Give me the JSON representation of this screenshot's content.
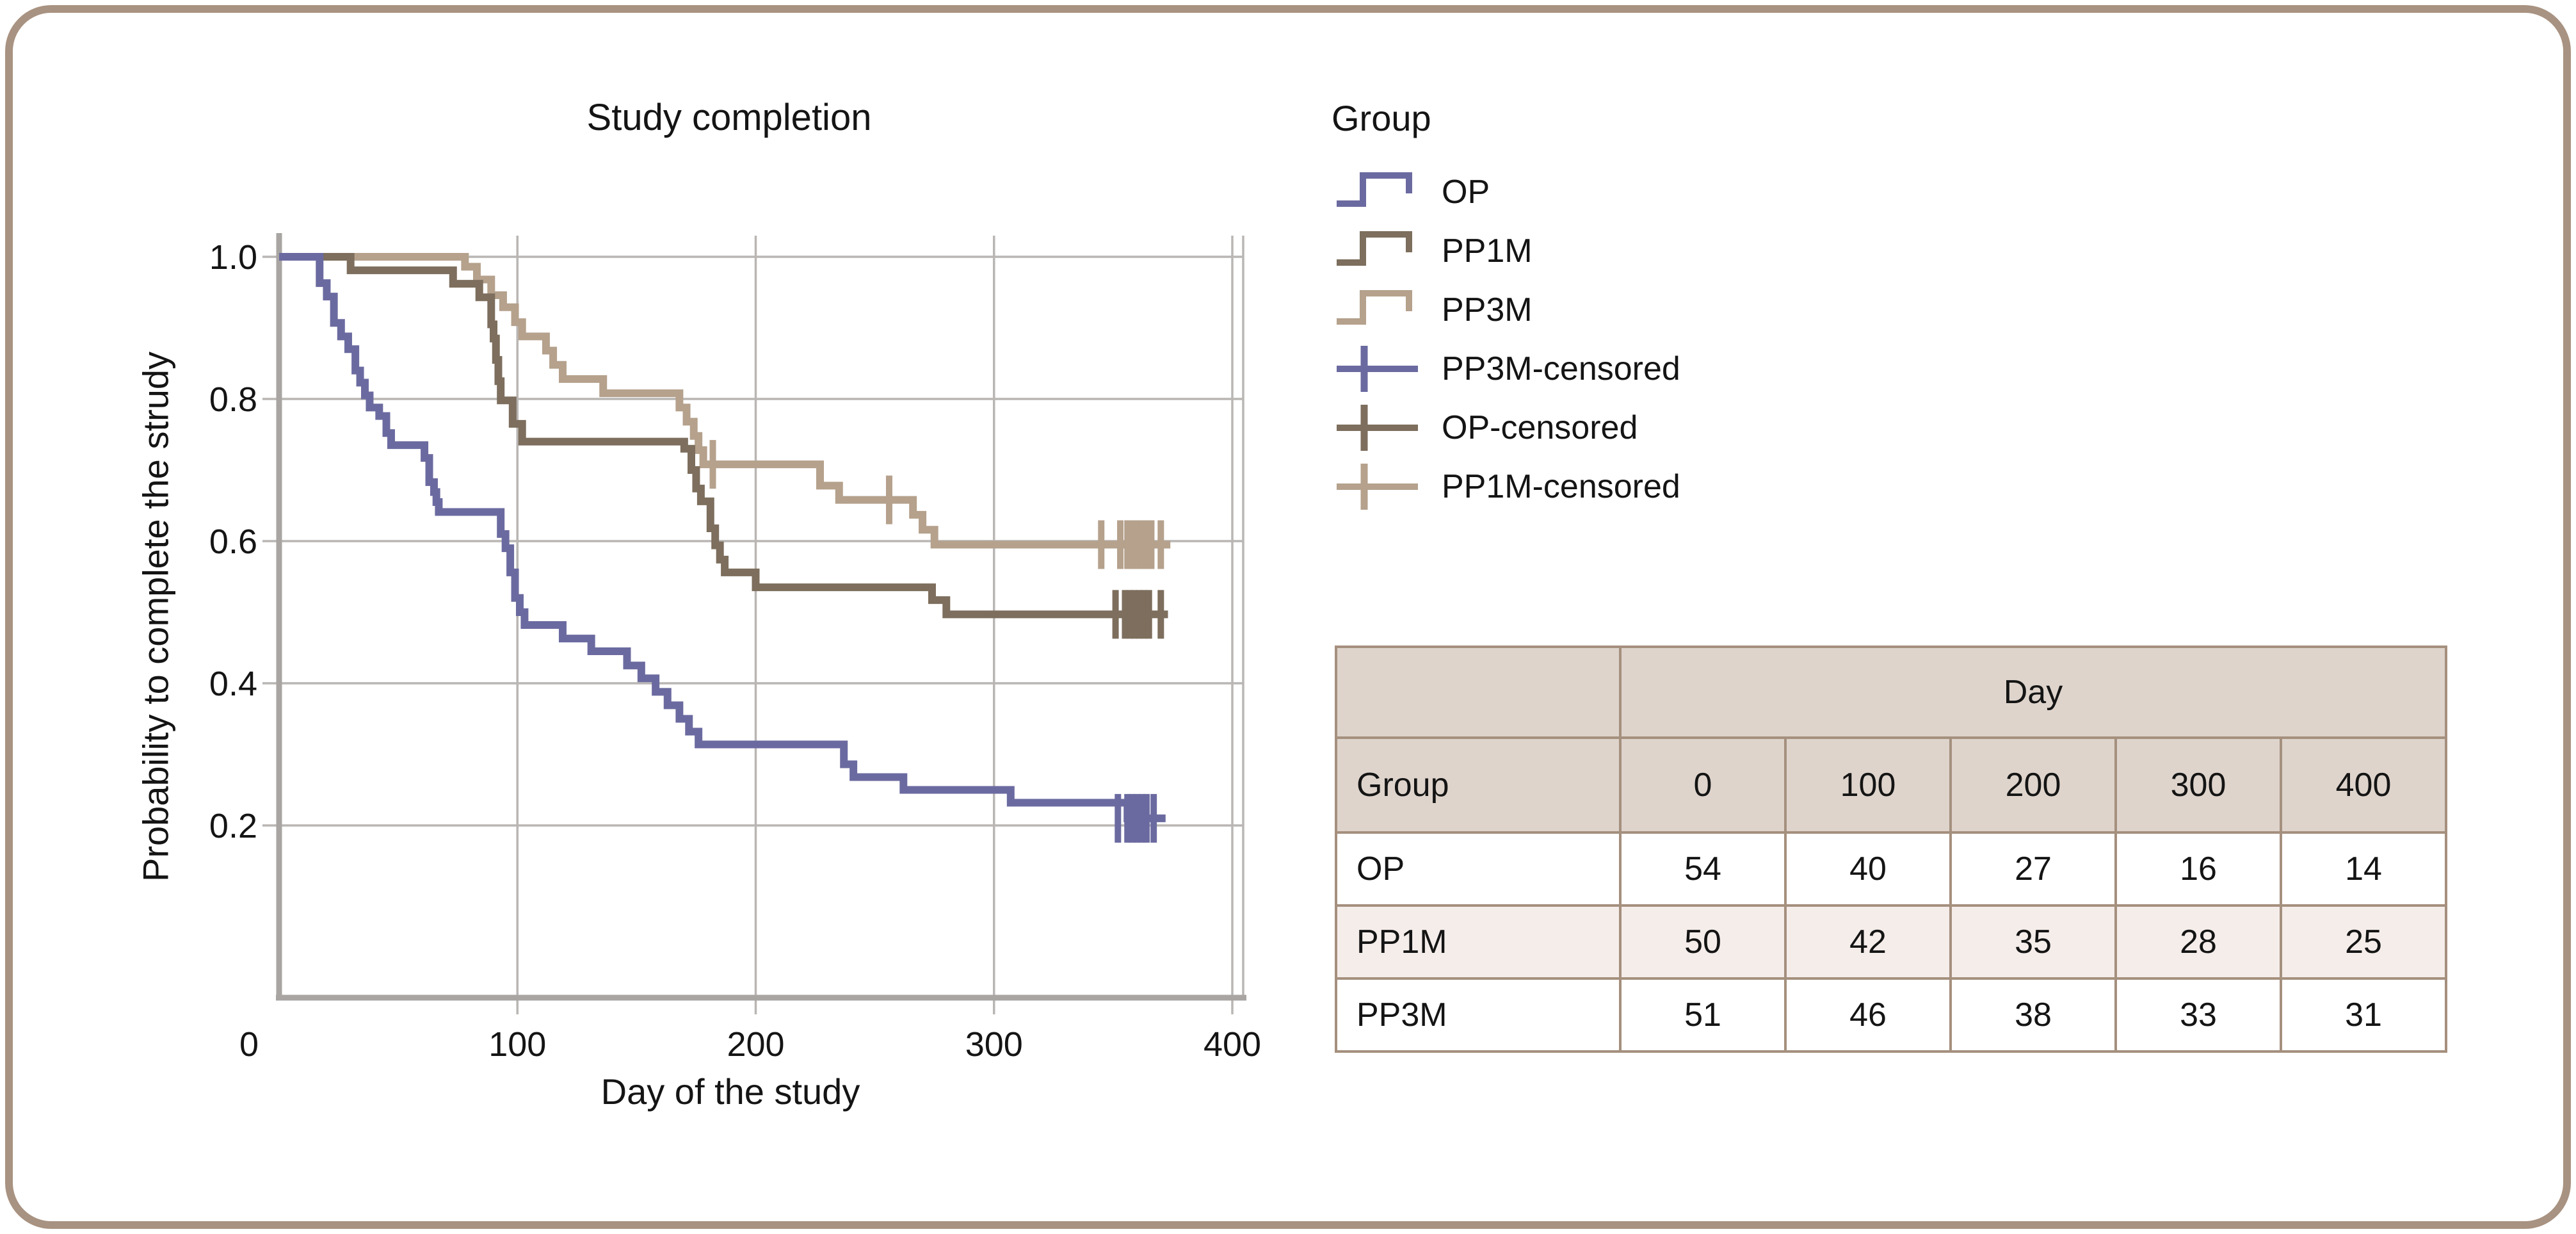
{
  "window": {
    "background": "#ffffff",
    "frame_border_color": "#a89281"
  },
  "chart": {
    "title": "Study completion",
    "x_label": "Day of the study",
    "y_label": "Probability to complete the strudy",
    "x_tick_labels": [
      "0",
      "100",
      "200",
      "300",
      "400"
    ],
    "y_tick_labels": [
      "1.0",
      "0.8",
      "0.6",
      "0.4",
      "0.2"
    ],
    "grid_color": "#b9b6b4",
    "axis_color": "#a8a5a2",
    "text_color": "#141414"
  },
  "legend": {
    "title": "Group",
    "items": [
      {
        "label": "OP",
        "marker": "step",
        "color": "#6b6aa0"
      },
      {
        "label": "PP1M",
        "marker": "step",
        "color": "#7d6e5d"
      },
      {
        "label": "PP3M",
        "marker": "step",
        "color": "#b5a18c"
      },
      {
        "label": "PP3M-censored",
        "marker": "plus",
        "color": "#6b6aa0"
      },
      {
        "label": "OP-censored",
        "marker": "plus",
        "color": "#7d6e5d"
      },
      {
        "label": "PP1M-censored",
        "marker": "plus",
        "color": "#b5a18c"
      }
    ]
  },
  "risk_table": {
    "day_header": "Day",
    "group_header": "Group",
    "columns": [
      "0",
      "100",
      "200",
      "300",
      "400"
    ],
    "rows": [
      {
        "group": "OP",
        "values": [
          "54",
          "40",
          "27",
          "16",
          "14"
        ]
      },
      {
        "group": "PP1M",
        "values": [
          "50",
          "42",
          "35",
          "28",
          "25"
        ]
      },
      {
        "group": "PP3M",
        "values": [
          "51",
          "46",
          "38",
          "33",
          "31"
        ]
      }
    ],
    "header_bg": "#ded4cc",
    "alt_row_bg": "#f5edea",
    "border_color": "#a5907e"
  },
  "chart_data": {
    "type": "line",
    "subtype": "kaplan-meier-step",
    "title": "Study completion",
    "xlabel": "Day of the study",
    "ylabel": "Probability to complete the strudy",
    "xlim": [
      0,
      404
    ],
    "ylim": [
      0,
      1.0
    ],
    "x_ticks": [
      0,
      100,
      200,
      300,
      400
    ],
    "y_ticks": [
      1.0,
      0.8,
      0.6,
      0.4,
      0.2
    ],
    "grid": true,
    "legend_position": "top-right",
    "series": [
      {
        "name": "PP3M",
        "color": "#b5a18c",
        "end_day": 374,
        "points": [
          [
            0,
            1.0
          ],
          [
            78,
            0.986
          ],
          [
            83,
            0.968
          ],
          [
            89,
            0.946
          ],
          [
            94,
            0.929
          ],
          [
            99,
            0.908
          ],
          [
            102,
            0.888
          ],
          [
            112,
            0.868
          ],
          [
            115,
            0.848
          ],
          [
            119,
            0.828
          ],
          [
            136,
            0.808
          ],
          [
            168,
            0.788
          ],
          [
            171,
            0.768
          ],
          [
            174,
            0.748
          ],
          [
            176,
            0.728
          ],
          [
            178,
            0.708
          ],
          [
            227,
            0.678
          ],
          [
            235,
            0.658
          ],
          [
            266,
            0.637
          ],
          [
            270,
            0.616
          ],
          [
            275,
            0.595
          ]
        ],
        "censored": [
          [
            182,
            0.708
          ],
          [
            256,
            0.658
          ],
          [
            345,
            0.595
          ],
          [
            353,
            0.595
          ],
          [
            356,
            0.595
          ],
          [
            358,
            0.595
          ],
          [
            360,
            0.595
          ],
          [
            362,
            0.595
          ],
          [
            364,
            0.595
          ],
          [
            366,
            0.595
          ],
          [
            370,
            0.595
          ]
        ]
      },
      {
        "name": "PP1M",
        "color": "#7d6e5d",
        "end_day": 373,
        "points": [
          [
            0,
            1.0
          ],
          [
            30,
            0.981
          ],
          [
            73,
            0.962
          ],
          [
            84,
            0.943
          ],
          [
            89,
            0.905
          ],
          [
            90,
            0.885
          ],
          [
            91,
            0.855
          ],
          [
            92,
            0.825
          ],
          [
            93,
            0.798
          ],
          [
            98,
            0.765
          ],
          [
            102,
            0.74
          ],
          [
            170,
            0.73
          ],
          [
            173,
            0.7
          ],
          [
            175,
            0.674
          ],
          [
            177,
            0.656
          ],
          [
            181,
            0.618
          ],
          [
            183,
            0.594
          ],
          [
            185,
            0.574
          ],
          [
            187,
            0.556
          ],
          [
            200,
            0.535
          ],
          [
            274,
            0.517
          ],
          [
            280,
            0.497
          ]
        ],
        "censored": [
          [
            351,
            0.497
          ],
          [
            355,
            0.497
          ],
          [
            357,
            0.497
          ],
          [
            359,
            0.497
          ],
          [
            361,
            0.497
          ],
          [
            363,
            0.497
          ],
          [
            365,
            0.497
          ],
          [
            370,
            0.497
          ]
        ]
      },
      {
        "name": "OP",
        "color": "#6b6aa0",
        "end_day": 372,
        "points": [
          [
            0,
            1.0
          ],
          [
            17,
            0.963
          ],
          [
            20,
            0.944
          ],
          [
            23,
            0.907
          ],
          [
            26,
            0.888
          ],
          [
            29,
            0.87
          ],
          [
            32,
            0.84
          ],
          [
            34,
            0.823
          ],
          [
            36,
            0.805
          ],
          [
            38,
            0.788
          ],
          [
            42,
            0.776
          ],
          [
            45,
            0.752
          ],
          [
            47,
            0.735
          ],
          [
            61,
            0.717
          ],
          [
            63,
            0.683
          ],
          [
            65,
            0.669
          ],
          [
            66,
            0.655
          ],
          [
            67,
            0.641
          ],
          [
            93,
            0.61
          ],
          [
            95,
            0.59
          ],
          [
            97,
            0.556
          ],
          [
            99,
            0.52
          ],
          [
            101,
            0.5
          ],
          [
            103,
            0.482
          ],
          [
            119,
            0.463
          ],
          [
            131,
            0.445
          ],
          [
            146,
            0.425
          ],
          [
            152,
            0.407
          ],
          [
            158,
            0.388
          ],
          [
            163,
            0.369
          ],
          [
            168,
            0.35
          ],
          [
            172,
            0.332
          ],
          [
            176,
            0.314
          ],
          [
            237,
            0.286
          ],
          [
            241,
            0.268
          ],
          [
            262,
            0.25
          ],
          [
            307,
            0.232
          ],
          [
            356,
            0.21
          ]
        ],
        "censored": [
          [
            352,
            0.21
          ],
          [
            356,
            0.21
          ],
          [
            358,
            0.21
          ],
          [
            360,
            0.21
          ],
          [
            362,
            0.21
          ],
          [
            364,
            0.21
          ],
          [
            367,
            0.21
          ]
        ]
      }
    ]
  }
}
